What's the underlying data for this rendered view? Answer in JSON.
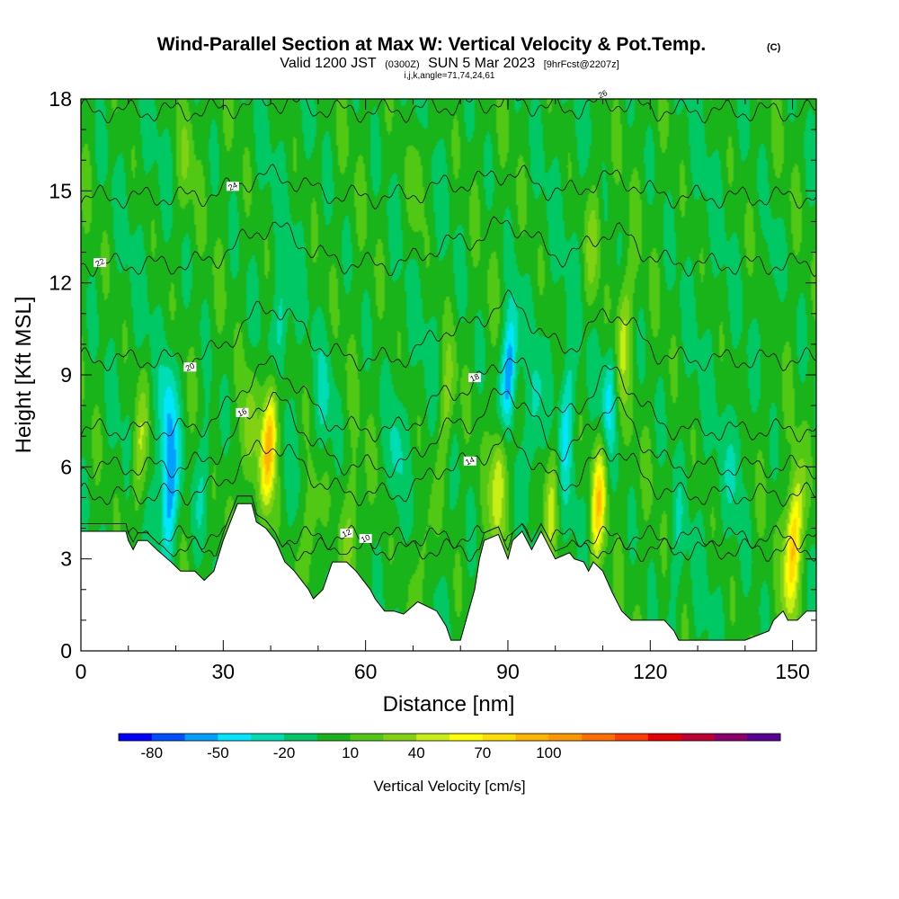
{
  "title": {
    "main": "Wind-Parallel Section at Max W: Vertical Velocity & Pot.Temp.",
    "main_mark": "(C)",
    "valid_prefix": "Valid 1200 JST",
    "valid_utc": "(0300Z)",
    "valid_date": "SUN 5 Mar 2023",
    "forecast": "[9hrFcst@2207z]",
    "indices": "i,j,k,angle=71,74,24,61"
  },
  "chart_data": {
    "type": "heatmap",
    "xlabel": "Distance [nm]",
    "ylabel": "Height [Kft MSL]",
    "xlim": [
      0,
      155
    ],
    "ylim": [
      0,
      18
    ],
    "x_ticks": [
      "0",
      "30",
      "60",
      "90",
      "120",
      "150"
    ],
    "y_ticks": [
      "0",
      "3",
      "6",
      "9",
      "12",
      "15",
      "18"
    ],
    "colorbar": {
      "label": "Vertical Velocity [cm/s]",
      "tick_labels": [
        "-80",
        "-50",
        "-20",
        "10",
        "40",
        "70",
        "100"
      ],
      "tick_values": [
        -80,
        -50,
        -20,
        10,
        40,
        70,
        100
      ],
      "colors": [
        "#0000ff",
        "#0050ff",
        "#00a0ff",
        "#00e6ff",
        "#00dcb4",
        "#00c864",
        "#19b419",
        "#50c814",
        "#82d214",
        "#c8ee14",
        "#ffff00",
        "#ffdc00",
        "#ffb400",
        "#ff9600",
        "#ff6e00",
        "#ff3c00",
        "#e60000",
        "#be0032",
        "#8c006e",
        "#5a0096"
      ]
    },
    "background_w_cms": 0,
    "updrafts": [
      {
        "x": 12,
        "y": 6.5,
        "w": 40
      },
      {
        "x": 35,
        "y": 7.0,
        "w": 35
      },
      {
        "x": 39.5,
        "y": 6.8,
        "w": 105
      },
      {
        "x": 48,
        "y": 4.0,
        "w": 35
      },
      {
        "x": 57,
        "y": 4.2,
        "w": 25
      },
      {
        "x": 77,
        "y": 8.0,
        "w": 35
      },
      {
        "x": 88,
        "y": 5.8,
        "w": 60
      },
      {
        "x": 99,
        "y": 4.8,
        "w": 40
      },
      {
        "x": 109,
        "y": 5.0,
        "w": 80
      },
      {
        "x": 114,
        "y": 10.3,
        "w": 45
      },
      {
        "x": 150,
        "y": 3.5,
        "w": 95
      },
      {
        "x": 72,
        "y": 3.0,
        "w": 30
      },
      {
        "x": 108,
        "y": 13.5,
        "w": 30
      },
      {
        "x": 22,
        "y": 16.0,
        "w": 20
      },
      {
        "x": 71,
        "y": 15.5,
        "w": 25
      }
    ],
    "downdrafts": [
      {
        "x": 18.5,
        "y": 5.0,
        "w": -60
      },
      {
        "x": 18,
        "y": 7.5,
        "w": -40
      },
      {
        "x": 26,
        "y": 6.0,
        "w": -25
      },
      {
        "x": 42,
        "y": 10.5,
        "w": -30
      },
      {
        "x": 51,
        "y": 8.0,
        "w": -25
      },
      {
        "x": 66,
        "y": 6.5,
        "w": -20
      },
      {
        "x": 90,
        "y": 9.0,
        "w": -80
      },
      {
        "x": 95,
        "y": 7.5,
        "w": -30
      },
      {
        "x": 102,
        "y": 7.5,
        "w": -35
      },
      {
        "x": 111,
        "y": 8.0,
        "w": -50
      },
      {
        "x": 125,
        "y": 3.0,
        "w": -15
      },
      {
        "x": 145,
        "y": 12.0,
        "w": -15
      },
      {
        "x": 138,
        "y": 6.5,
        "w": -20
      }
    ],
    "terrain_kft": [
      [
        0,
        3.9
      ],
      [
        5,
        3.9
      ],
      [
        9.5,
        3.9
      ],
      [
        10,
        3.6
      ],
      [
        11,
        3.3
      ],
      [
        12,
        3.6
      ],
      [
        14,
        3.6
      ],
      [
        16,
        3.3
      ],
      [
        19,
        2.9
      ],
      [
        21,
        2.6
      ],
      [
        24,
        2.6
      ],
      [
        26,
        2.3
      ],
      [
        28,
        2.6
      ],
      [
        30,
        3.6
      ],
      [
        31.5,
        4.2
      ],
      [
        33,
        4.8
      ],
      [
        36,
        4.8
      ],
      [
        37,
        4.2
      ],
      [
        39,
        4.0
      ],
      [
        41,
        3.6
      ],
      [
        43,
        2.9
      ],
      [
        45,
        2.6
      ],
      [
        48,
        2.0
      ],
      [
        49,
        1.7
      ],
      [
        51,
        2.0
      ],
      [
        53,
        2.9
      ],
      [
        56,
        2.9
      ],
      [
        58,
        2.6
      ],
      [
        61,
        2.0
      ],
      [
        62,
        1.7
      ],
      [
        64,
        1.3
      ],
      [
        66,
        1.3
      ],
      [
        68,
        1.2
      ],
      [
        71,
        1.6
      ],
      [
        75,
        1.3
      ],
      [
        77,
        0.8
      ],
      [
        78,
        0.35
      ],
      [
        80,
        0.35
      ],
      [
        81,
        0.9
      ],
      [
        83,
        2.0
      ],
      [
        84,
        3.0
      ],
      [
        85,
        3.6
      ],
      [
        88,
        3.8
      ],
      [
        89,
        3.4
      ],
      [
        90,
        3.0
      ],
      [
        91,
        3.6
      ],
      [
        93,
        3.9
      ],
      [
        94,
        3.6
      ],
      [
        95,
        3.3
      ],
      [
        97,
        3.9
      ],
      [
        98,
        3.6
      ],
      [
        100,
        3.0
      ],
      [
        103,
        3.2
      ],
      [
        104,
        3.0
      ],
      [
        106,
        2.9
      ],
      [
        107,
        2.6
      ],
      [
        108,
        2.9
      ],
      [
        110,
        2.6
      ],
      [
        112,
        1.9
      ],
      [
        114,
        1.3
      ],
      [
        116,
        1.0
      ],
      [
        123,
        1.0
      ],
      [
        125,
        0.65
      ],
      [
        126,
        0.35
      ],
      [
        133,
        0.35
      ],
      [
        140,
        0.35
      ],
      [
        145,
        0.65
      ],
      [
        146,
        1.0
      ],
      [
        148,
        1.3
      ],
      [
        149,
        1.0
      ],
      [
        151,
        1.0
      ],
      [
        153,
        1.3
      ],
      [
        155,
        1.3
      ]
    ],
    "theta_contours": [
      {
        "level": 10,
        "base": 3.3,
        "ridge_amp": 0,
        "label": "10",
        "label_x": 58
      },
      {
        "level": 12,
        "base": 3.7,
        "ridge_amp": 0,
        "label": "12",
        "label_x": 54
      },
      {
        "level": 14,
        "base": 5.1,
        "ridge_amp": 1.6,
        "label": "14",
        "label_x": 80
      },
      {
        "level": 16,
        "base": 6.0,
        "ridge_amp": 2.2,
        "label": "16",
        "label_x": 32
      },
      {
        "level": 18,
        "base": 7.2,
        "ridge_amp": 2.1,
        "label": "18",
        "label_x": 81
      },
      {
        "level": 20,
        "base": 9.5,
        "ridge_amp": 1.7,
        "label": "20",
        "label_x": 21
      },
      {
        "level": 22,
        "base": 12.6,
        "ridge_amp": 1.2,
        "label": "22",
        "label_x": 2
      },
      {
        "level": 24,
        "base": 14.8,
        "ridge_amp": 0.7,
        "label": "24",
        "label_x": 30
      },
      {
        "level": 26,
        "base": 17.6,
        "ridge_amp": 0.3,
        "label": "26",
        "label_x": 108
      }
    ]
  }
}
